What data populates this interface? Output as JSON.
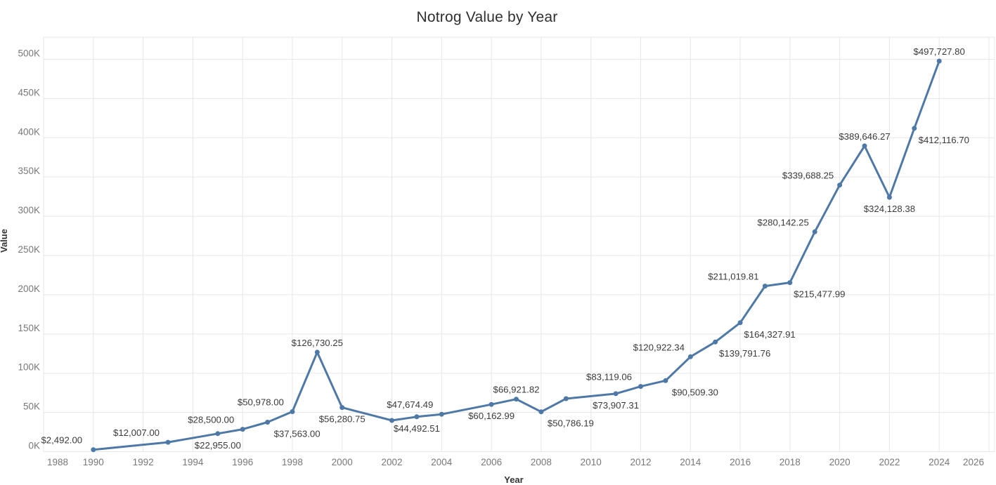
{
  "title": "Notrog Value by Year",
  "colors": {
    "line": "#4e79a7",
    "marker": "#4e79a7",
    "grid": "#e7e7e7",
    "tick_text": "#787878",
    "data_label_text": "#3b3b3b",
    "title_text": "#2f2f2f",
    "axis_title_text": "#333333",
    "background": "#ffffff"
  },
  "chart_data": {
    "type": "line",
    "title": "Notrog Value by Year",
    "xlabel": "Year",
    "ylabel": "Value",
    "xlim": [
      1988,
      2026
    ],
    "ylim": [
      0,
      528000
    ],
    "grid": true,
    "x_ticks": [
      1988,
      1990,
      1992,
      1994,
      1996,
      1998,
      2000,
      2002,
      2004,
      2006,
      2008,
      2010,
      2012,
      2014,
      2016,
      2018,
      2020,
      2022,
      2024,
      2026
    ],
    "y_ticks": [
      {
        "value": 0,
        "label": "0K"
      },
      {
        "value": 50000,
        "label": "50K"
      },
      {
        "value": 100000,
        "label": "100K"
      },
      {
        "value": 150000,
        "label": "150K"
      },
      {
        "value": 200000,
        "label": "200K"
      },
      {
        "value": 250000,
        "label": "250K"
      },
      {
        "value": 300000,
        "label": "300K"
      },
      {
        "value": 350000,
        "label": "350K"
      },
      {
        "value": 400000,
        "label": "400K"
      },
      {
        "value": 450000,
        "label": "450K"
      },
      {
        "value": 500000,
        "label": "500K"
      }
    ],
    "points": [
      {
        "year": 1990,
        "value": 2492.0,
        "label": "$2,492.00",
        "label_pos": "above-left"
      },
      {
        "year": 1993,
        "value": 12007.0,
        "label": "$12,007.00",
        "label_pos": "above-left"
      },
      {
        "year": 1995,
        "value": 22955.0,
        "label": "$22,955.00",
        "label_pos": "below"
      },
      {
        "year": 1996,
        "value": 28500.0,
        "label": "$28,500.00",
        "label_pos": "above-left"
      },
      {
        "year": 1997,
        "value": 37563.0,
        "label": "$37,563.00",
        "label_pos": "below-right"
      },
      {
        "year": 1998,
        "value": 50978.0,
        "label": "$50,978.00",
        "label_pos": "above-left"
      },
      {
        "year": 1999,
        "value": 126730.25,
        "label": "$126,730.25",
        "label_pos": "above"
      },
      {
        "year": 2000,
        "value": 56280.75,
        "label": "$56,280.75",
        "label_pos": "below"
      },
      {
        "year": 2002,
        "value": 39800,
        "label": "",
        "label_pos": "none",
        "estimated": true
      },
      {
        "year": 2003,
        "value": 44492.51,
        "label": "$44,492.51",
        "label_pos": "below"
      },
      {
        "year": 2004,
        "value": 47674.49,
        "label": "$47,674.49",
        "label_pos": "above-left"
      },
      {
        "year": 2006,
        "value": 60162.99,
        "label": "$60,162.99",
        "label_pos": "below"
      },
      {
        "year": 2007,
        "value": 66921.82,
        "label": "$66,921.82",
        "label_pos": "above"
      },
      {
        "year": 2008,
        "value": 50786.19,
        "label": "$50,786.19",
        "label_pos": "below-right"
      },
      {
        "year": 2009,
        "value": 67500,
        "label": "",
        "label_pos": "none",
        "estimated": true
      },
      {
        "year": 2011,
        "value": 73907.31,
        "label": "$73,907.31",
        "label_pos": "below"
      },
      {
        "year": 2012,
        "value": 83119.06,
        "label": "$83,119.06",
        "label_pos": "above-left"
      },
      {
        "year": 2013,
        "value": 90509.3,
        "label": "$90,509.30",
        "label_pos": "below-right"
      },
      {
        "year": 2014,
        "value": 120922.34,
        "label": "$120,922.34",
        "label_pos": "above-left"
      },
      {
        "year": 2015,
        "value": 139791.76,
        "label": "$139,791.76",
        "label_pos": "below-right"
      },
      {
        "year": 2016,
        "value": 164327.91,
        "label": "$164,327.91",
        "label_pos": "below-right"
      },
      {
        "year": 2017,
        "value": 211019.81,
        "label": "$211,019.81",
        "label_pos": "above-left"
      },
      {
        "year": 2018,
        "value": 215477.99,
        "label": "$215,477.99",
        "label_pos": "below-right"
      },
      {
        "year": 2019,
        "value": 280142.25,
        "label": "$280,142.25",
        "label_pos": "above-left"
      },
      {
        "year": 2020,
        "value": 339688.25,
        "label": "$339,688.25",
        "label_pos": "above-left"
      },
      {
        "year": 2021,
        "value": 389646.27,
        "label": "$389,646.27",
        "label_pos": "above"
      },
      {
        "year": 2022,
        "value": 324128.38,
        "label": "$324,128.38",
        "label_pos": "below"
      },
      {
        "year": 2023,
        "value": 412116.7,
        "label": "$412,116.70",
        "label_pos": "below-right"
      },
      {
        "year": 2024,
        "value": 497727.8,
        "label": "$497,727.80",
        "label_pos": "above"
      }
    ]
  }
}
